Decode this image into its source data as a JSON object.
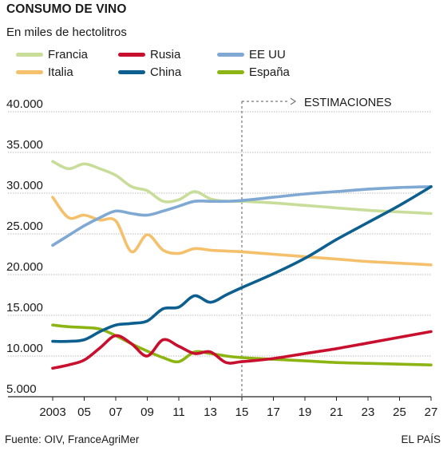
{
  "chart_data": {
    "type": "line",
    "title": "CONSUMO DE VINO",
    "subtitle": "En miles de hectolitros",
    "xlim": [
      2003,
      2027
    ],
    "ylim": [
      5000,
      40000
    ],
    "y_ticks": [
      5000,
      10000,
      15000,
      20000,
      25000,
      30000,
      35000,
      40000
    ],
    "y_tick_labels": [
      "5.000",
      "10.000",
      "15.000",
      "20.000",
      "25.000",
      "30.000",
      "35.000",
      "40.000"
    ],
    "x_ticks": [
      2003,
      2005,
      2007,
      2009,
      2011,
      2013,
      2015,
      2017,
      2019,
      2021,
      2023,
      2025,
      2027
    ],
    "x_tick_labels": [
      "2003",
      "05",
      "07",
      "09",
      "11",
      "13",
      "15",
      "17",
      "19",
      "21",
      "23",
      "25",
      "27"
    ],
    "grid": "horizontal",
    "legend_position": "top",
    "annotation": {
      "text": "ESTIMACIONES",
      "x": 2015
    },
    "series": [
      {
        "name": "Francia",
        "color": "#c9dd9a",
        "x": [
          2003,
          2004,
          2005,
          2006,
          2007,
          2008,
          2009,
          2010,
          2011,
          2012,
          2013,
          2014,
          2015,
          2017,
          2019,
          2021,
          2023,
          2025,
          2027
        ],
        "values": [
          33900,
          33000,
          33600,
          33000,
          32200,
          30800,
          30300,
          29000,
          29200,
          30200,
          29300,
          29000,
          29000,
          28800,
          28500,
          28200,
          27900,
          27700,
          27500
        ]
      },
      {
        "name": "Rusia",
        "color": "#c8102e",
        "x": [
          2003,
          2004,
          2005,
          2006,
          2007,
          2008,
          2009,
          2010,
          2011,
          2012,
          2013,
          2014,
          2015,
          2017,
          2019,
          2021,
          2023,
          2025,
          2027
        ],
        "values": [
          8500,
          8900,
          9500,
          11000,
          12500,
          11500,
          10000,
          12000,
          11200,
          10300,
          10500,
          9200,
          9300,
          9700,
          10300,
          10900,
          11600,
          12300,
          13000
        ]
      },
      {
        "name": "EE UU",
        "color": "#7fa8d3",
        "x": [
          2003,
          2004,
          2005,
          2006,
          2007,
          2008,
          2009,
          2010,
          2011,
          2012,
          2013,
          2014,
          2015,
          2017,
          2019,
          2021,
          2023,
          2025,
          2027
        ],
        "values": [
          23600,
          24800,
          26000,
          27000,
          27800,
          27500,
          27300,
          27800,
          28400,
          29000,
          29000,
          29000,
          29100,
          29500,
          29900,
          30200,
          30500,
          30700,
          30800
        ]
      },
      {
        "name": "Italia",
        "color": "#f5c06b",
        "x": [
          2003,
          2004,
          2005,
          2006,
          2007,
          2008,
          2009,
          2010,
          2011,
          2012,
          2013,
          2014,
          2015,
          2017,
          2019,
          2021,
          2023,
          2025,
          2027
        ],
        "values": [
          29500,
          27000,
          27300,
          26700,
          26600,
          22800,
          24900,
          23000,
          22600,
          23200,
          23000,
          22900,
          22800,
          22500,
          22200,
          21900,
          21600,
          21400,
          21200
        ]
      },
      {
        "name": "China",
        "color": "#0c5f8e",
        "x": [
          2003,
          2004,
          2005,
          2006,
          2007,
          2008,
          2009,
          2010,
          2011,
          2012,
          2013,
          2014,
          2015,
          2017,
          2019,
          2021,
          2023,
          2025,
          2027
        ],
        "values": [
          11800,
          11800,
          12000,
          13000,
          13800,
          14000,
          14300,
          15800,
          16000,
          17400,
          16600,
          17500,
          18400,
          20100,
          22000,
          24300,
          26400,
          28500,
          30800
        ]
      },
      {
        "name": "España",
        "color": "#8cb514",
        "x": [
          2003,
          2004,
          2005,
          2006,
          2007,
          2008,
          2009,
          2010,
          2011,
          2012,
          2013,
          2014,
          2015,
          2017,
          2019,
          2021,
          2023,
          2025,
          2027
        ],
        "values": [
          13800,
          13600,
          13500,
          13300,
          12500,
          11500,
          10600,
          9800,
          9300,
          10500,
          10300,
          10000,
          9800,
          9600,
          9400,
          9200,
          9100,
          9000,
          8900
        ]
      }
    ]
  },
  "footer": {
    "source": "Fuente: OIV, FranceAgriMer",
    "publisher": "EL PAÍS"
  }
}
